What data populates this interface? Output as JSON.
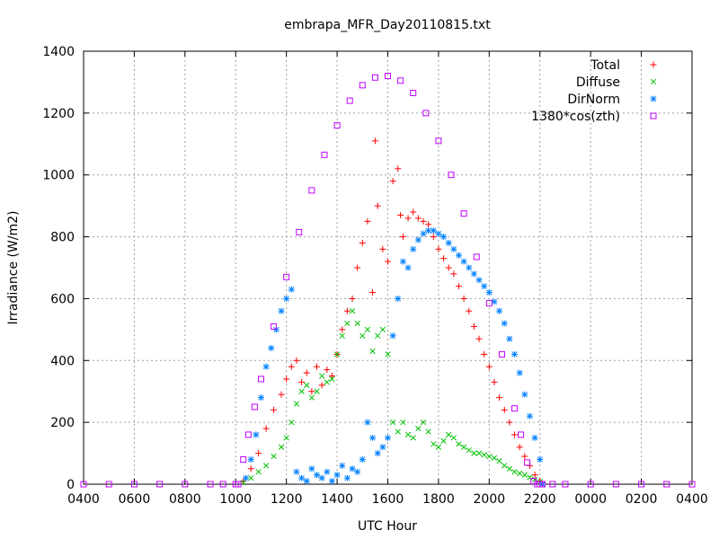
{
  "chart_data": {
    "type": "scatter",
    "title": "embrapa_MFR_Day20110815.txt",
    "xlabel": "UTC Hour",
    "ylabel": "Irradiance (W/m2)",
    "xlim": [
      4,
      28
    ],
    "ylim": [
      0,
      1400
    ],
    "grid": true,
    "legend_position": "top-right",
    "x_ticks": [
      {
        "value": 4,
        "label": "0400"
      },
      {
        "value": 6,
        "label": "0600"
      },
      {
        "value": 8,
        "label": "0800"
      },
      {
        "value": 10,
        "label": "1000"
      },
      {
        "value": 12,
        "label": "1200"
      },
      {
        "value": 14,
        "label": "1400"
      },
      {
        "value": 16,
        "label": "1600"
      },
      {
        "value": 18,
        "label": "1800"
      },
      {
        "value": 20,
        "label": "2000"
      },
      {
        "value": 22,
        "label": "2200"
      },
      {
        "value": 24,
        "label": "0000"
      },
      {
        "value": 26,
        "label": "0200"
      },
      {
        "value": 28,
        "label": "0400"
      }
    ],
    "y_ticks": [
      0,
      200,
      400,
      600,
      800,
      1000,
      1200,
      1400
    ],
    "series": [
      {
        "name": "Total",
        "color": "#ff0000",
        "marker": "plus",
        "x": [
          10.3,
          10.6,
          10.9,
          11.2,
          11.5,
          11.8,
          12.0,
          12.2,
          12.4,
          12.6,
          12.8,
          13.0,
          13.2,
          13.4,
          13.6,
          13.8,
          14.0,
          14.2,
          14.4,
          14.6,
          14.8,
          15.0,
          15.2,
          15.4,
          15.5,
          15.6,
          15.8,
          16.0,
          16.2,
          16.4,
          16.5,
          16.6,
          16.8,
          17.0,
          17.2,
          17.4,
          17.6,
          17.8,
          18.0,
          18.2,
          18.4,
          18.6,
          18.8,
          19.0,
          19.2,
          19.4,
          19.6,
          19.8,
          20.0,
          20.2,
          20.4,
          20.6,
          20.8,
          21.0,
          21.2,
          21.4,
          21.6,
          21.8,
          22.0,
          22.1
        ],
        "y": [
          10,
          50,
          100,
          180,
          240,
          290,
          340,
          380,
          400,
          330,
          360,
          300,
          380,
          320,
          370,
          350,
          420,
          500,
          560,
          600,
          700,
          780,
          850,
          620,
          1110,
          900,
          760,
          720,
          980,
          1020,
          870,
          800,
          860,
          880,
          860,
          850,
          840,
          800,
          760,
          730,
          700,
          680,
          640,
          600,
          560,
          510,
          470,
          420,
          380,
          330,
          280,
          240,
          200,
          160,
          120,
          90,
          60,
          30,
          10,
          0
        ]
      },
      {
        "name": "Diffuse",
        "color": "#00c000",
        "marker": "cross",
        "x": [
          10.3,
          10.6,
          10.9,
          11.2,
          11.5,
          11.8,
          12.0,
          12.2,
          12.4,
          12.6,
          12.8,
          13.0,
          13.2,
          13.4,
          13.6,
          13.8,
          14.0,
          14.2,
          14.4,
          14.6,
          14.8,
          15.0,
          15.2,
          15.4,
          15.6,
          15.8,
          16.0,
          16.2,
          16.4,
          16.6,
          16.8,
          17.0,
          17.2,
          17.4,
          17.6,
          17.8,
          18.0,
          18.2,
          18.4,
          18.6,
          18.8,
          19.0,
          19.2,
          19.4,
          19.6,
          19.8,
          20.0,
          20.2,
          20.4,
          20.6,
          20.8,
          21.0,
          21.2,
          21.4,
          21.6,
          21.8,
          22.0,
          22.1
        ],
        "y": [
          5,
          20,
          40,
          60,
          90,
          120,
          150,
          200,
          260,
          300,
          320,
          280,
          300,
          350,
          330,
          340,
          420,
          480,
          520,
          560,
          520,
          480,
          500,
          430,
          480,
          500,
          420,
          200,
          170,
          200,
          160,
          150,
          180,
          200,
          170,
          130,
          120,
          140,
          160,
          150,
          130,
          120,
          110,
          100,
          100,
          95,
          90,
          85,
          75,
          60,
          50,
          40,
          35,
          30,
          22,
          15,
          8,
          0
        ]
      },
      {
        "name": "DirNorm",
        "color": "#0080ff",
        "marker": "star",
        "x": [
          10.4,
          10.6,
          10.8,
          11.0,
          11.2,
          11.4,
          11.6,
          11.8,
          12.0,
          12.2,
          12.4,
          12.6,
          12.8,
          13.0,
          13.2,
          13.4,
          13.6,
          13.8,
          14.0,
          14.2,
          14.4,
          14.6,
          14.8,
          15.0,
          15.2,
          15.4,
          15.6,
          15.8,
          16.0,
          16.2,
          16.4,
          16.6,
          16.8,
          17.0,
          17.2,
          17.4,
          17.6,
          17.8,
          18.0,
          18.2,
          18.4,
          18.6,
          18.8,
          19.0,
          19.2,
          19.4,
          19.6,
          19.8,
          20.0,
          20.2,
          20.4,
          20.6,
          20.8,
          21.0,
          21.2,
          21.4,
          21.6,
          21.8,
          22.0,
          22.1
        ],
        "y": [
          20,
          80,
          160,
          280,
          380,
          440,
          500,
          560,
          600,
          630,
          40,
          20,
          10,
          50,
          30,
          20,
          40,
          10,
          30,
          60,
          20,
          50,
          40,
          80,
          200,
          150,
          100,
          120,
          150,
          480,
          600,
          720,
          700,
          760,
          790,
          810,
          820,
          820,
          810,
          800,
          780,
          760,
          740,
          720,
          700,
          680,
          660,
          640,
          620,
          590,
          560,
          520,
          470,
          420,
          360,
          290,
          220,
          150,
          80,
          0
        ]
      },
      {
        "name": "1380*cos(zth)",
        "color": "#c000ff",
        "marker": "square",
        "x": [
          4.0,
          5.0,
          6.0,
          7.0,
          8.0,
          9.0,
          9.5,
          10.0,
          10.1,
          10.3,
          10.5,
          10.75,
          11.0,
          11.5,
          12.0,
          12.5,
          13.0,
          13.5,
          14.0,
          14.5,
          15.0,
          15.5,
          16.0,
          16.5,
          17.0,
          17.5,
          18.0,
          18.5,
          19.0,
          19.5,
          20.0,
          20.5,
          21.0,
          21.25,
          21.5,
          21.75,
          21.9,
          22.0,
          22.1,
          22.5,
          23.0,
          24.0,
          25.0,
          26.0,
          27.0,
          28.0
        ],
        "y": [
          0,
          0,
          0,
          0,
          0,
          0,
          0,
          0,
          0,
          80,
          160,
          250,
          340,
          510,
          670,
          815,
          950,
          1065,
          1160,
          1240,
          1290,
          1315,
          1320,
          1305,
          1265,
          1200,
          1110,
          1000,
          875,
          735,
          585,
          420,
          245,
          160,
          70,
          10,
          0,
          0,
          0,
          0,
          0,
          0,
          0,
          0,
          0,
          0
        ]
      }
    ]
  }
}
